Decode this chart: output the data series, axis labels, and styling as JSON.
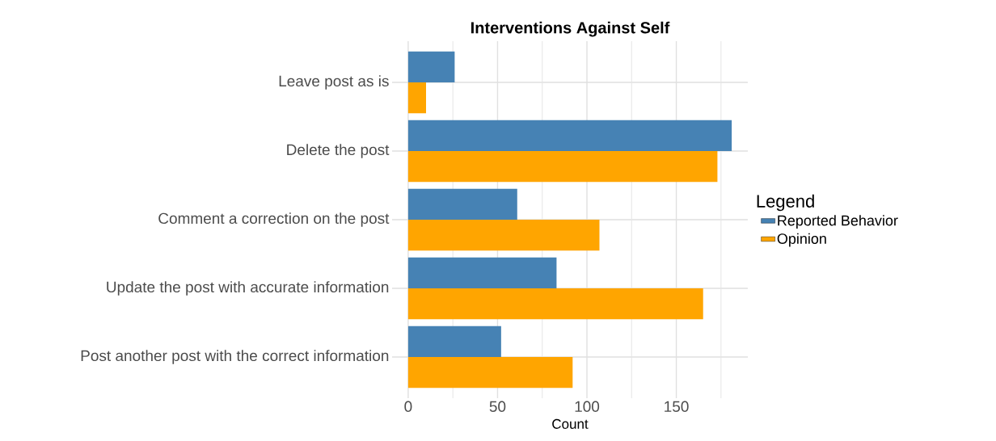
{
  "chart_data": {
    "type": "bar",
    "orientation": "horizontal",
    "title": "Interventions Against Self",
    "xlabel": "Count",
    "legend_title": "Legend",
    "categories": [
      "Leave post as is",
      "Delete the post",
      "Comment a correction on the post",
      "Update the post with accurate information",
      "Post another post with the correct information"
    ],
    "series": [
      {
        "name": "Reported Behavior",
        "color": "#4682b4",
        "values": [
          26,
          181,
          61,
          83,
          52
        ]
      },
      {
        "name": "Opinion",
        "color": "#ffa500",
        "values": [
          10,
          173,
          107,
          165,
          92
        ]
      }
    ],
    "xlim": [
      -9,
      190
    ],
    "xticks": [
      0,
      {
        "value": 25,
        "label": null
      },
      50,
      {
        "value": 75,
        "label": null
      },
      100,
      {
        "value": 125,
        "label": null
      },
      150,
      {
        "value": 175,
        "label": null
      }
    ],
    "grid": true,
    "legend": "right"
  }
}
